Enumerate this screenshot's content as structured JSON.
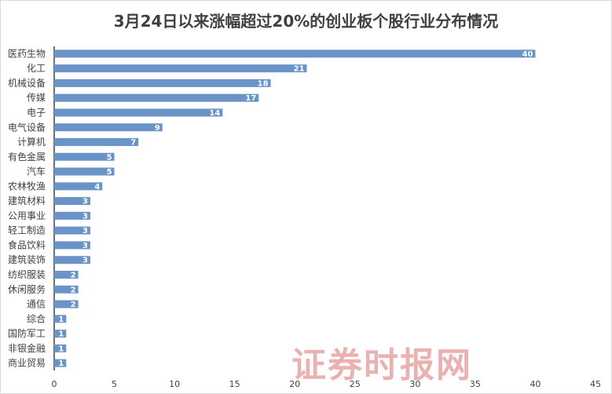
{
  "chart_data": {
    "type": "bar",
    "orientation": "horizontal",
    "title": "3月24日以来涨幅超过20%的创业板个股行业分布情况",
    "categories": [
      "医药生物",
      "化工",
      "机械设备",
      "传媒",
      "电子",
      "电气设备",
      "计算机",
      "有色金属",
      "汽车",
      "农林牧渔",
      "建筑材料",
      "公用事业",
      "轻工制造",
      "食品饮料",
      "建筑装饰",
      "纺织服装",
      "休闲服务",
      "通信",
      "综合",
      "国防军工",
      "非银金融",
      "商业贸易"
    ],
    "values": [
      40,
      21,
      18,
      17,
      14,
      9,
      7,
      5,
      5,
      4,
      3,
      3,
      3,
      3,
      3,
      2,
      2,
      2,
      1,
      1,
      1,
      1
    ],
    "xlim": [
      0,
      45
    ],
    "xticks": [
      0,
      5,
      10,
      15,
      20,
      25,
      30,
      35,
      40,
      45
    ],
    "grid": false,
    "data_labels": true,
    "bar_color": "#6a93c7"
  },
  "watermark": "证券时报网"
}
